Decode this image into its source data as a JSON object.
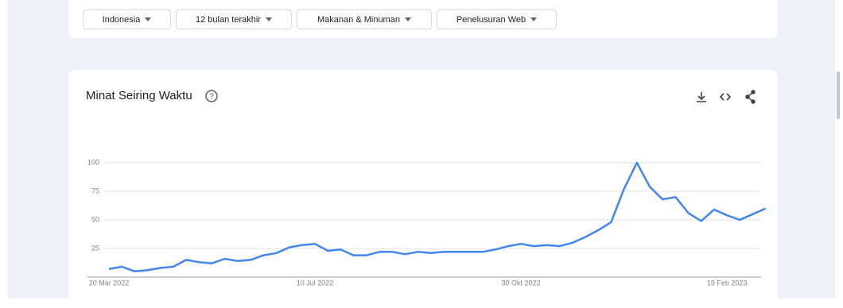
{
  "filters": [
    "Indonesia",
    "12 bulan terakhir",
    "Makanan & Minuman",
    "Penelusuran Web"
  ],
  "chart_data": {
    "type": "line",
    "title": "Minat Seiring Waktu",
    "categories": [
      "20 Mar 2022",
      null,
      null,
      null,
      null,
      null,
      null,
      null,
      null,
      null,
      null,
      null,
      null,
      null,
      null,
      null,
      "10 Jul 2022",
      null,
      null,
      null,
      null,
      null,
      null,
      null,
      null,
      null,
      null,
      null,
      null,
      null,
      null,
      null,
      "30 Okt 2022",
      null,
      null,
      null,
      null,
      null,
      null,
      null,
      null,
      null,
      null,
      null,
      null,
      null,
      null,
      null,
      "19 Feb 2023",
      null,
      null,
      null
    ],
    "values": [
      7,
      9,
      5,
      6,
      8,
      9,
      15,
      13,
      12,
      16,
      14,
      15,
      19,
      21,
      26,
      28,
      29,
      23,
      24,
      19,
      19,
      22,
      22,
      20,
      22,
      21,
      22,
      22,
      22,
      22,
      24,
      27,
      29,
      27,
      28,
      27,
      30,
      35,
      41,
      48,
      77,
      100,
      79,
      68,
      70,
      56,
      49,
      59,
      54,
      50,
      55,
      60
    ],
    "color": "#4285f4",
    "ylim": [
      0,
      100
    ],
    "yticks": [
      25,
      50,
      75,
      100
    ],
    "grid": true
  }
}
